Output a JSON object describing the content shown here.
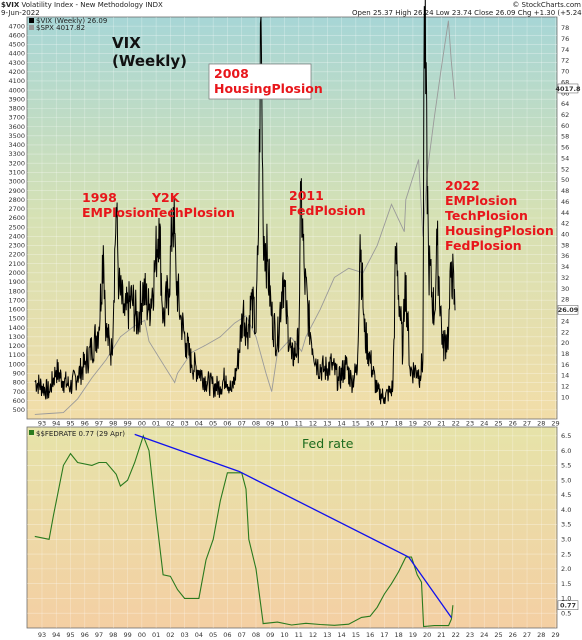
{
  "header": {
    "symbol": "$VIX",
    "description": "Volatility Index - New Methodology",
    "exchange": "INDX",
    "date": "9-Jun-2022",
    "open_label": "Open",
    "open": "25.37",
    "high_label": "High",
    "high": "26.24",
    "low_label": "Low",
    "low": "23.74",
    "close_label": "Close",
    "close": "26.09",
    "chg_label": "Chg",
    "chg": "+1.30 (+5.24%)",
    "credit": "© StockCharts.com"
  },
  "legend": {
    "vix": "$VIX (Weekly) 26.09",
    "spx": "$SPX 4017.82",
    "fed": "$$FEDRATE 0.77 (29 Apr)"
  },
  "colors": {
    "vix": "#000000",
    "spx": "#9a9a9a",
    "fed": "#2a7a1e",
    "trend": "#1111ee",
    "annotation": "#e8161b"
  },
  "chart_data": [
    {
      "type": "line",
      "title": "VIX\n(Weekly)",
      "x_tick_labels": [
        "93",
        "94",
        "95",
        "96",
        "97",
        "98",
        "99",
        "00",
        "01",
        "02",
        "03",
        "04",
        "05",
        "06",
        "07",
        "08",
        "09",
        "10",
        "11",
        "12",
        "13",
        "14",
        "15",
        "16",
        "17",
        "18",
        "19",
        "20",
        "21",
        "22",
        "23",
        "24",
        "25",
        "26",
        "27",
        "28",
        "29"
      ],
      "left_axis": {
        "series": "$SPX",
        "ylim": [
          400,
          4800
        ],
        "tick_labels": [
          "500",
          "600",
          "700",
          "800",
          "900",
          "1000",
          "1100",
          "1200",
          "1300",
          "1400",
          "1500",
          "1600",
          "1700",
          "1800",
          "1900",
          "2000",
          "2100",
          "2200",
          "2300",
          "2400",
          "2500",
          "2600",
          "2700",
          "2800",
          "2900",
          "3000",
          "3100",
          "3200",
          "3300",
          "3400",
          "3500",
          "3600",
          "3700",
          "3800",
          "3900",
          "4000",
          "4100",
          "4200",
          "4300",
          "4400",
          "4500",
          "4600",
          "4700"
        ]
      },
      "right_axis": {
        "series": "$VIX",
        "ylim": [
          6,
          80
        ],
        "tick_labels": [
          "10",
          "12",
          "14",
          "16",
          "18",
          "20",
          "22",
          "24",
          "26",
          "28",
          "30",
          "32",
          "34",
          "36",
          "38",
          "40",
          "42",
          "44",
          "46",
          "48",
          "50",
          "52",
          "54",
          "56",
          "58",
          "60",
          "62",
          "64",
          "66",
          "68",
          "70",
          "72",
          "74",
          "76",
          "78"
        ],
        "value_flags": [
          "26.09",
          "4017.8"
        ]
      },
      "series": [
        {
          "name": "$VIX (Weekly)",
          "x": [
            1993.0,
            1993.5,
            1994.0,
            1994.5,
            1995.0,
            1995.5,
            1996.0,
            1996.5,
            1997.0,
            1997.5,
            1997.8,
            1998.0,
            1998.4,
            1998.7,
            1998.9,
            1999.3,
            1999.8,
            2000.2,
            2000.6,
            2001.0,
            2001.4,
            2001.7,
            2002.0,
            2002.4,
            2002.7,
            2002.9,
            2003.2,
            2003.6,
            2004.0,
            2004.5,
            2005.0,
            2005.5,
            2006.0,
            2006.4,
            2006.8,
            2007.2,
            2007.6,
            2007.9,
            2008.2,
            2008.5,
            2008.7,
            2008.85,
            2009.0,
            2009.3,
            2009.6,
            2010.0,
            2010.4,
            2010.6,
            2011.0,
            2011.5,
            2011.65,
            2011.9,
            2012.3,
            2012.8,
            2013.3,
            2013.8,
            2014.3,
            2014.8,
            2015.2,
            2015.6,
            2015.8,
            2016.1,
            2016.5,
            2017.0,
            2017.5,
            2017.9,
            2018.1,
            2018.3,
            2018.8,
            2018.95,
            2019.3,
            2019.8,
            2020.0,
            2020.2,
            2020.3,
            2020.6,
            2021.0,
            2021.2,
            2021.6,
            2022.0,
            2022.2,
            2022.45
          ],
          "y": [
            13,
            12,
            11,
            15,
            13,
            12,
            14,
            16,
            19,
            23,
            38,
            22,
            18,
            45,
            30,
            25,
            28,
            24,
            30,
            26,
            33,
            43,
            24,
            30,
            45,
            32,
            25,
            20,
            16,
            15,
            13,
            12,
            12,
            14,
            11,
            16,
            26,
            22,
            28,
            22,
            45,
            80,
            42,
            35,
            25,
            20,
            33,
            26,
            17,
            20,
            48,
            32,
            22,
            16,
            15,
            16,
            13,
            16,
            13,
            15,
            40,
            22,
            17,
            11,
            10,
            11,
            12,
            37,
            18,
            33,
            15,
            15,
            14,
            17,
            82,
            35,
            25,
            38,
            19,
            22,
            35,
            26
          ]
        },
        {
          "name": "$SPX",
          "x": [
            1993,
            1994,
            1995,
            1996,
            1997,
            1998,
            1999,
            2000,
            2000.7,
            2001,
            2002,
            2002.8,
            2003,
            2004,
            2005,
            2006,
            2007,
            2007.8,
            2008.5,
            2009.2,
            2009.6,
            2010,
            2011,
            2011.7,
            2012,
            2013,
            2014,
            2015,
            2016,
            2017,
            2018,
            2018.9,
            2019,
            2019.9,
            2020.2,
            2020.5,
            2021,
            2021.5,
            2021.99,
            2022.2,
            2022.45
          ],
          "y": [
            450,
            460,
            470,
            620,
            850,
            1050,
            1300,
            1420,
            1480,
            1250,
            1000,
            800,
            900,
            1130,
            1210,
            1300,
            1450,
            1530,
            1300,
            900,
            700,
            1120,
            1290,
            1140,
            1300,
            1600,
            1950,
            2050,
            2000,
            2300,
            2750,
            2450,
            2800,
            3240,
            2400,
            3100,
            3700,
            4250,
            4760,
            4300,
            3900
          ]
        }
      ],
      "annotations": [
        {
          "text": "1998\nEMPlosion"
        },
        {
          "text": "Y2K\nTechPlosion"
        },
        {
          "text": "2008\nHousingPlosion",
          "boxed": true
        },
        {
          "text": "2011\nFedPlosion"
        },
        {
          "text": "2022\nEMPlosion\nTechPlosion\nHousingPlosion\nFedPlosion"
        }
      ]
    },
    {
      "type": "line",
      "title": "Fed rate",
      "x_tick_labels": [
        "93",
        "94",
        "95",
        "96",
        "97",
        "98",
        "99",
        "00",
        "01",
        "02",
        "03",
        "04",
        "05",
        "06",
        "07",
        "08",
        "09",
        "10",
        "11",
        "12",
        "13",
        "14",
        "15",
        "16",
        "17",
        "18",
        "19",
        "20",
        "21",
        "22",
        "23",
        "24",
        "25",
        "26",
        "27",
        "28",
        "29"
      ],
      "ylim": [
        0,
        6.8
      ],
      "tick_labels": [
        "0.5",
        "1.0",
        "1.5",
        "2.0",
        "2.5",
        "3.0",
        "3.5",
        "4.0",
        "4.5",
        "5.0",
        "5.5",
        "6.0",
        "6.5"
      ],
      "value_flag": "0.77",
      "series": [
        {
          "name": "$$FEDRATE",
          "x": [
            1993.0,
            1994.0,
            1994.3,
            1995.0,
            1995.5,
            1996.0,
            1997.0,
            1997.5,
            1998.0,
            1998.7,
            1999.0,
            1999.5,
            2000.0,
            2000.6,
            2001.0,
            2001.5,
            2001.99,
            2002.5,
            2003.0,
            2003.5,
            2004.5,
            2005.0,
            2005.5,
            2006.0,
            2006.5,
            2007.5,
            2007.8,
            2008.0,
            2008.5,
            2008.99,
            2009,
            2010,
            2011,
            2012,
            2013,
            2014,
            2015,
            2015.9,
            2016.5,
            2017,
            2017.5,
            2018,
            2018.5,
            2019.0,
            2019.4,
            2019.8,
            2020.1,
            2020.25,
            2021,
            2021.5,
            2022.0,
            2022.2,
            2022.3
          ],
          "y": [
            3.1,
            3.0,
            3.8,
            5.5,
            5.9,
            5.6,
            5.5,
            5.6,
            5.6,
            5.2,
            4.8,
            5.0,
            5.6,
            6.5,
            6.0,
            3.8,
            1.8,
            1.75,
            1.3,
            1.0,
            1.0,
            2.3,
            3.0,
            4.3,
            5.25,
            5.25,
            4.7,
            3.0,
            2.0,
            0.2,
            0.15,
            0.2,
            0.1,
            0.16,
            0.12,
            0.09,
            0.13,
            0.36,
            0.4,
            0.7,
            1.15,
            1.5,
            1.9,
            2.4,
            2.4,
            1.8,
            1.55,
            0.05,
            0.08,
            0.08,
            0.08,
            0.3,
            0.77
          ]
        }
      ],
      "trendlines": [
        {
          "x": [
            2000.0,
            2007.3
          ],
          "y": [
            6.55,
            5.3
          ]
        },
        {
          "x": [
            2007.3,
            2019.2
          ],
          "y": [
            5.3,
            2.4
          ]
        },
        {
          "x": [
            2019.2,
            2022.2
          ],
          "y": [
            2.4,
            0.35
          ]
        }
      ]
    }
  ]
}
